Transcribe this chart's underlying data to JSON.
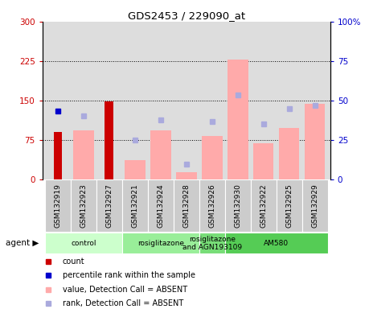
{
  "title": "GDS2453 / 229090_at",
  "samples": [
    "GSM132919",
    "GSM132923",
    "GSM132927",
    "GSM132921",
    "GSM132924",
    "GSM132928",
    "GSM132926",
    "GSM132930",
    "GSM132922",
    "GSM132925",
    "GSM132929"
  ],
  "count_values": [
    90,
    0,
    148,
    0,
    0,
    0,
    0,
    0,
    0,
    0,
    0
  ],
  "count_color": "#cc0000",
  "percentile_rank_values": [
    130,
    null,
    null,
    null,
    null,
    null,
    null,
    null,
    null,
    null,
    null
  ],
  "percentile_rank_color": "#0000cc",
  "value_absent_values": [
    null,
    93,
    null,
    37,
    93,
    13,
    83,
    228,
    68,
    98,
    143
  ],
  "value_absent_color": "#ffaaaa",
  "rank_absent_values": [
    null,
    120,
    null,
    75,
    113,
    28,
    110,
    160,
    105,
    135,
    140
  ],
  "rank_absent_color": "#aaaadd",
  "ylim_left": [
    0,
    300
  ],
  "ylim_right": [
    0,
    100
  ],
  "yticks_left": [
    0,
    75,
    150,
    225,
    300
  ],
  "ytick_labels_left": [
    "0",
    "75",
    "150",
    "225",
    "300"
  ],
  "yticks_right": [
    0,
    25,
    50,
    75,
    100
  ],
  "ytick_labels_right": [
    "0",
    "25",
    "50",
    "75",
    "100%"
  ],
  "hlines": [
    75,
    150,
    225
  ],
  "agent_groups": [
    {
      "label": "control",
      "start": 0,
      "end": 3,
      "color": "#ccffcc"
    },
    {
      "label": "rosiglitazone",
      "start": 3,
      "end": 6,
      "color": "#99ee99"
    },
    {
      "label": "rosiglitazone\nand AGN193109",
      "start": 6,
      "end": 7,
      "color": "#77dd77"
    },
    {
      "label": "AM580",
      "start": 7,
      "end": 11,
      "color": "#55cc55"
    }
  ],
  "legend_items": [
    {
      "color": "#cc0000",
      "label": "count"
    },
    {
      "color": "#0000cc",
      "label": "percentile rank within the sample"
    },
    {
      "color": "#ffaaaa",
      "label": "value, Detection Call = ABSENT"
    },
    {
      "color": "#aaaadd",
      "label": "rank, Detection Call = ABSENT"
    }
  ],
  "bar_width": 0.4,
  "bg_color": "#dddddd",
  "label_bg": "#cccccc",
  "plot_bg": "#ffffff"
}
